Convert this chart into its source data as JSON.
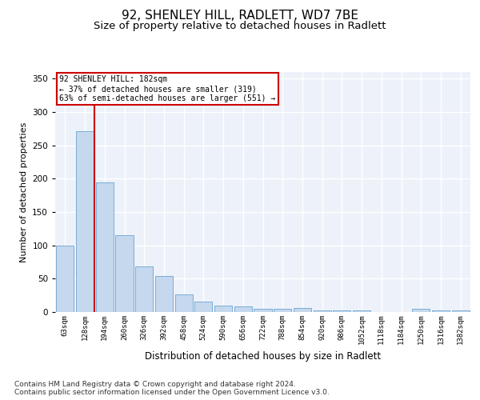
{
  "title1": "92, SHENLEY HILL, RADLETT, WD7 7BE",
  "title2": "Size of property relative to detached houses in Radlett",
  "xlabel": "Distribution of detached houses by size in Radlett",
  "ylabel": "Number of detached properties",
  "categories": [
    "63sqm",
    "128sqm",
    "194sqm",
    "260sqm",
    "326sqm",
    "392sqm",
    "458sqm",
    "524sqm",
    "590sqm",
    "656sqm",
    "722sqm",
    "788sqm",
    "854sqm",
    "920sqm",
    "986sqm",
    "1052sqm",
    "1118sqm",
    "1184sqm",
    "1250sqm",
    "1316sqm",
    "1382sqm"
  ],
  "values": [
    100,
    271,
    195,
    115,
    68,
    54,
    27,
    16,
    10,
    8,
    5,
    5,
    6,
    3,
    3,
    3,
    0,
    0,
    5,
    3,
    3
  ],
  "bar_color": "#c5d8ee",
  "bar_edge_color": "#7aadd4",
  "vline_color": "#cc0000",
  "annotation_text": "92 SHENLEY HILL: 182sqm\n← 37% of detached houses are smaller (319)\n63% of semi-detached houses are larger (551) →",
  "annotation_box_color": "#ffffff",
  "annotation_box_edge": "#cc0000",
  "bg_color": "#edf2fa",
  "grid_color": "#ffffff",
  "footer": "Contains HM Land Registry data © Crown copyright and database right 2024.\nContains public sector information licensed under the Open Government Licence v3.0.",
  "ylim": [
    0,
    360
  ],
  "title1_fontsize": 11,
  "title2_fontsize": 9.5,
  "xlabel_fontsize": 8.5,
  "ylabel_fontsize": 8,
  "tick_fontsize": 6.5,
  "footer_fontsize": 6.5
}
